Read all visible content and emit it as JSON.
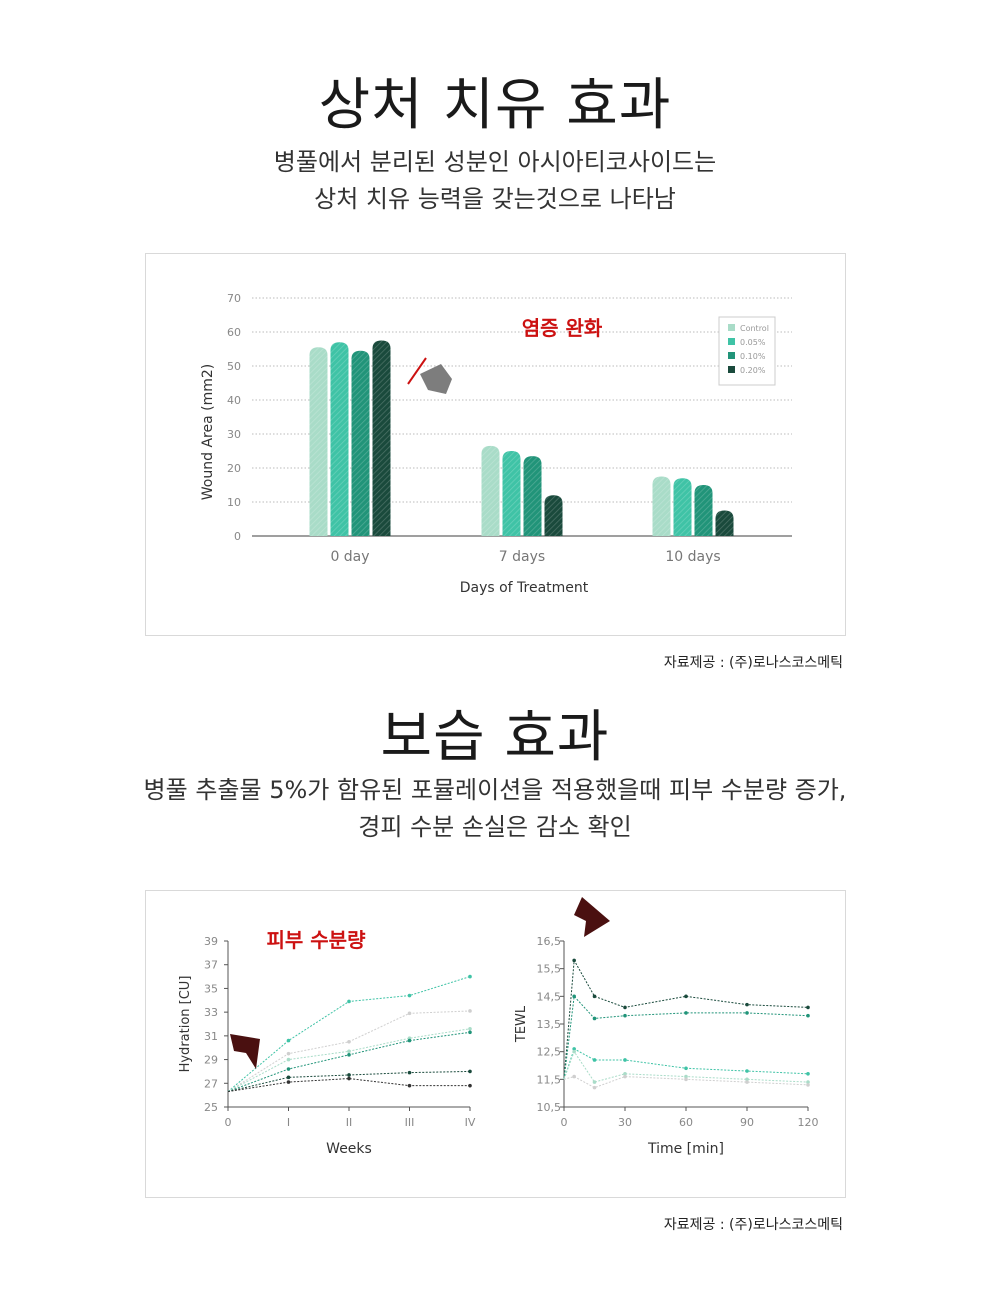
{
  "section1": {
    "title": "상처 치유 효과",
    "subtitle_lines": [
      "병풀에서 분리된 성분인 아시아티코사이드는",
      "상처 치유 능력을 갖는것으로 나타남"
    ],
    "source": "자료제공 : (주)로나스코스메틱"
  },
  "section2": {
    "title": "보습 효과",
    "subtitle_lines": [
      "병풀 추출물 5%가 함유된 포뮬레이션을 적용했을때 피부 수분량 증가,",
      "경피 수분 손실은 감소 확인"
    ],
    "source": "자료제공 : (주)로나스코스메틱"
  },
  "colors": {
    "control": "#a9dcc8",
    "c005": "#3fc3a6",
    "c010": "#219479",
    "c020": "#1a4a3c",
    "accent_red": "#cc1111"
  },
  "chart_data": [
    {
      "type": "bar",
      "title": "",
      "annotation": "염증 완화",
      "xlabel": "Days of Treatment",
      "ylabel": "Wound Area (mm2)",
      "ylim": [
        0,
        70
      ],
      "yticks": [
        "0",
        "10",
        "20",
        "30",
        "40",
        "50",
        "60",
        "70"
      ],
      "categories": [
        "0 day",
        "7 days",
        "10 days"
      ],
      "legend_position": "top-right",
      "series": [
        {
          "name": "Control",
          "values": [
            55.5,
            26.5,
            17.5
          ]
        },
        {
          "name": "0.05%",
          "values": [
            57,
            25,
            17
          ]
        },
        {
          "name": "0.10%",
          "values": [
            54.5,
            23.5,
            15
          ]
        },
        {
          "name": "0.20%",
          "values": [
            57.5,
            12,
            7.5
          ]
        }
      ]
    },
    {
      "type": "line",
      "annotation": "피부 수분량",
      "xlabel": "Weeks",
      "ylabel": "Hydration [CU]",
      "ylim": [
        25,
        39
      ],
      "yticks": [
        "25",
        "27",
        "29",
        "31",
        "33",
        "35",
        "37",
        "39"
      ],
      "categories": [
        "0",
        "I",
        "II",
        "III",
        "IV"
      ],
      "series": [
        {
          "values": [
            26.3,
            30.6,
            33.9,
            34.4,
            36.0
          ]
        },
        {
          "values": [
            26.3,
            29.5,
            30.5,
            32.9,
            33.1
          ]
        },
        {
          "values": [
            26.3,
            29.0,
            29.7,
            30.8,
            31.6
          ]
        },
        {
          "values": [
            26.3,
            28.2,
            29.4,
            30.6,
            31.3
          ]
        },
        {
          "values": [
            26.3,
            27.5,
            27.7,
            27.9,
            28.0
          ]
        },
        {
          "values": [
            26.3,
            27.1,
            27.4,
            26.8,
            26.8
          ]
        }
      ]
    },
    {
      "type": "line",
      "xlabel": "Time [min]",
      "ylabel": "TEWL",
      "ylim": [
        10.5,
        16.5
      ],
      "yticks": [
        "10,5",
        "11,5",
        "12,5",
        "13,5",
        "14,5",
        "15,5",
        "16,5"
      ],
      "x": [
        0,
        5,
        15,
        30,
        60,
        90,
        120
      ],
      "xticks": [
        "0",
        "30",
        "60",
        "90",
        "120"
      ],
      "series": [
        {
          "values": [
            11.5,
            15.8,
            14.5,
            14.1,
            14.5,
            14.2,
            14.1
          ]
        },
        {
          "values": [
            11.5,
            14.5,
            13.7,
            13.8,
            13.9,
            13.9,
            13.8
          ]
        },
        {
          "values": [
            11.5,
            12.6,
            12.2,
            12.2,
            11.9,
            11.8,
            11.7
          ]
        },
        {
          "values": [
            11.5,
            12.5,
            11.4,
            11.7,
            11.6,
            11.5,
            11.4
          ]
        },
        {
          "values": [
            11.5,
            11.6,
            11.2,
            11.6,
            11.5,
            11.4,
            11.3
          ]
        }
      ]
    }
  ]
}
